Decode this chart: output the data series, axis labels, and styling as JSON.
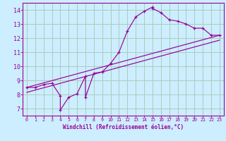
{
  "bg_color": "#cceeff",
  "line_color": "#990099",
  "grid_color": "#aaccbb",
  "xlabel": "Windchill (Refroidissement éolien,°C)",
  "xlabel_color": "#990099",
  "tick_color": "#990099",
  "xlim": [
    -0.5,
    23.5
  ],
  "ylim": [
    6.5,
    14.5
  ],
  "yticks": [
    7,
    8,
    9,
    10,
    11,
    12,
    13,
    14
  ],
  "xticks": [
    0,
    1,
    2,
    3,
    4,
    5,
    6,
    7,
    8,
    9,
    10,
    11,
    12,
    13,
    14,
    15,
    16,
    17,
    18,
    19,
    20,
    21,
    22,
    23
  ],
  "curve1_x": [
    0,
    1,
    2,
    3,
    4,
    4,
    5,
    6,
    7,
    7,
    8,
    9,
    10,
    11,
    12,
    13,
    14,
    15,
    15,
    16,
    17,
    18,
    19,
    20,
    21,
    22,
    23
  ],
  "curve1_y": [
    8.5,
    8.5,
    8.7,
    8.8,
    7.9,
    6.9,
    7.8,
    8.05,
    9.3,
    7.8,
    9.5,
    9.6,
    10.2,
    11.0,
    12.5,
    13.5,
    13.9,
    14.2,
    14.1,
    13.8,
    13.3,
    13.2,
    13.0,
    12.7,
    12.7,
    12.2,
    12.2
  ],
  "line2_x": [
    0,
    23
  ],
  "line2_y": [
    8.5,
    12.2
  ],
  "line3_x": [
    0,
    23
  ],
  "line3_y": [
    8.15,
    11.85
  ]
}
